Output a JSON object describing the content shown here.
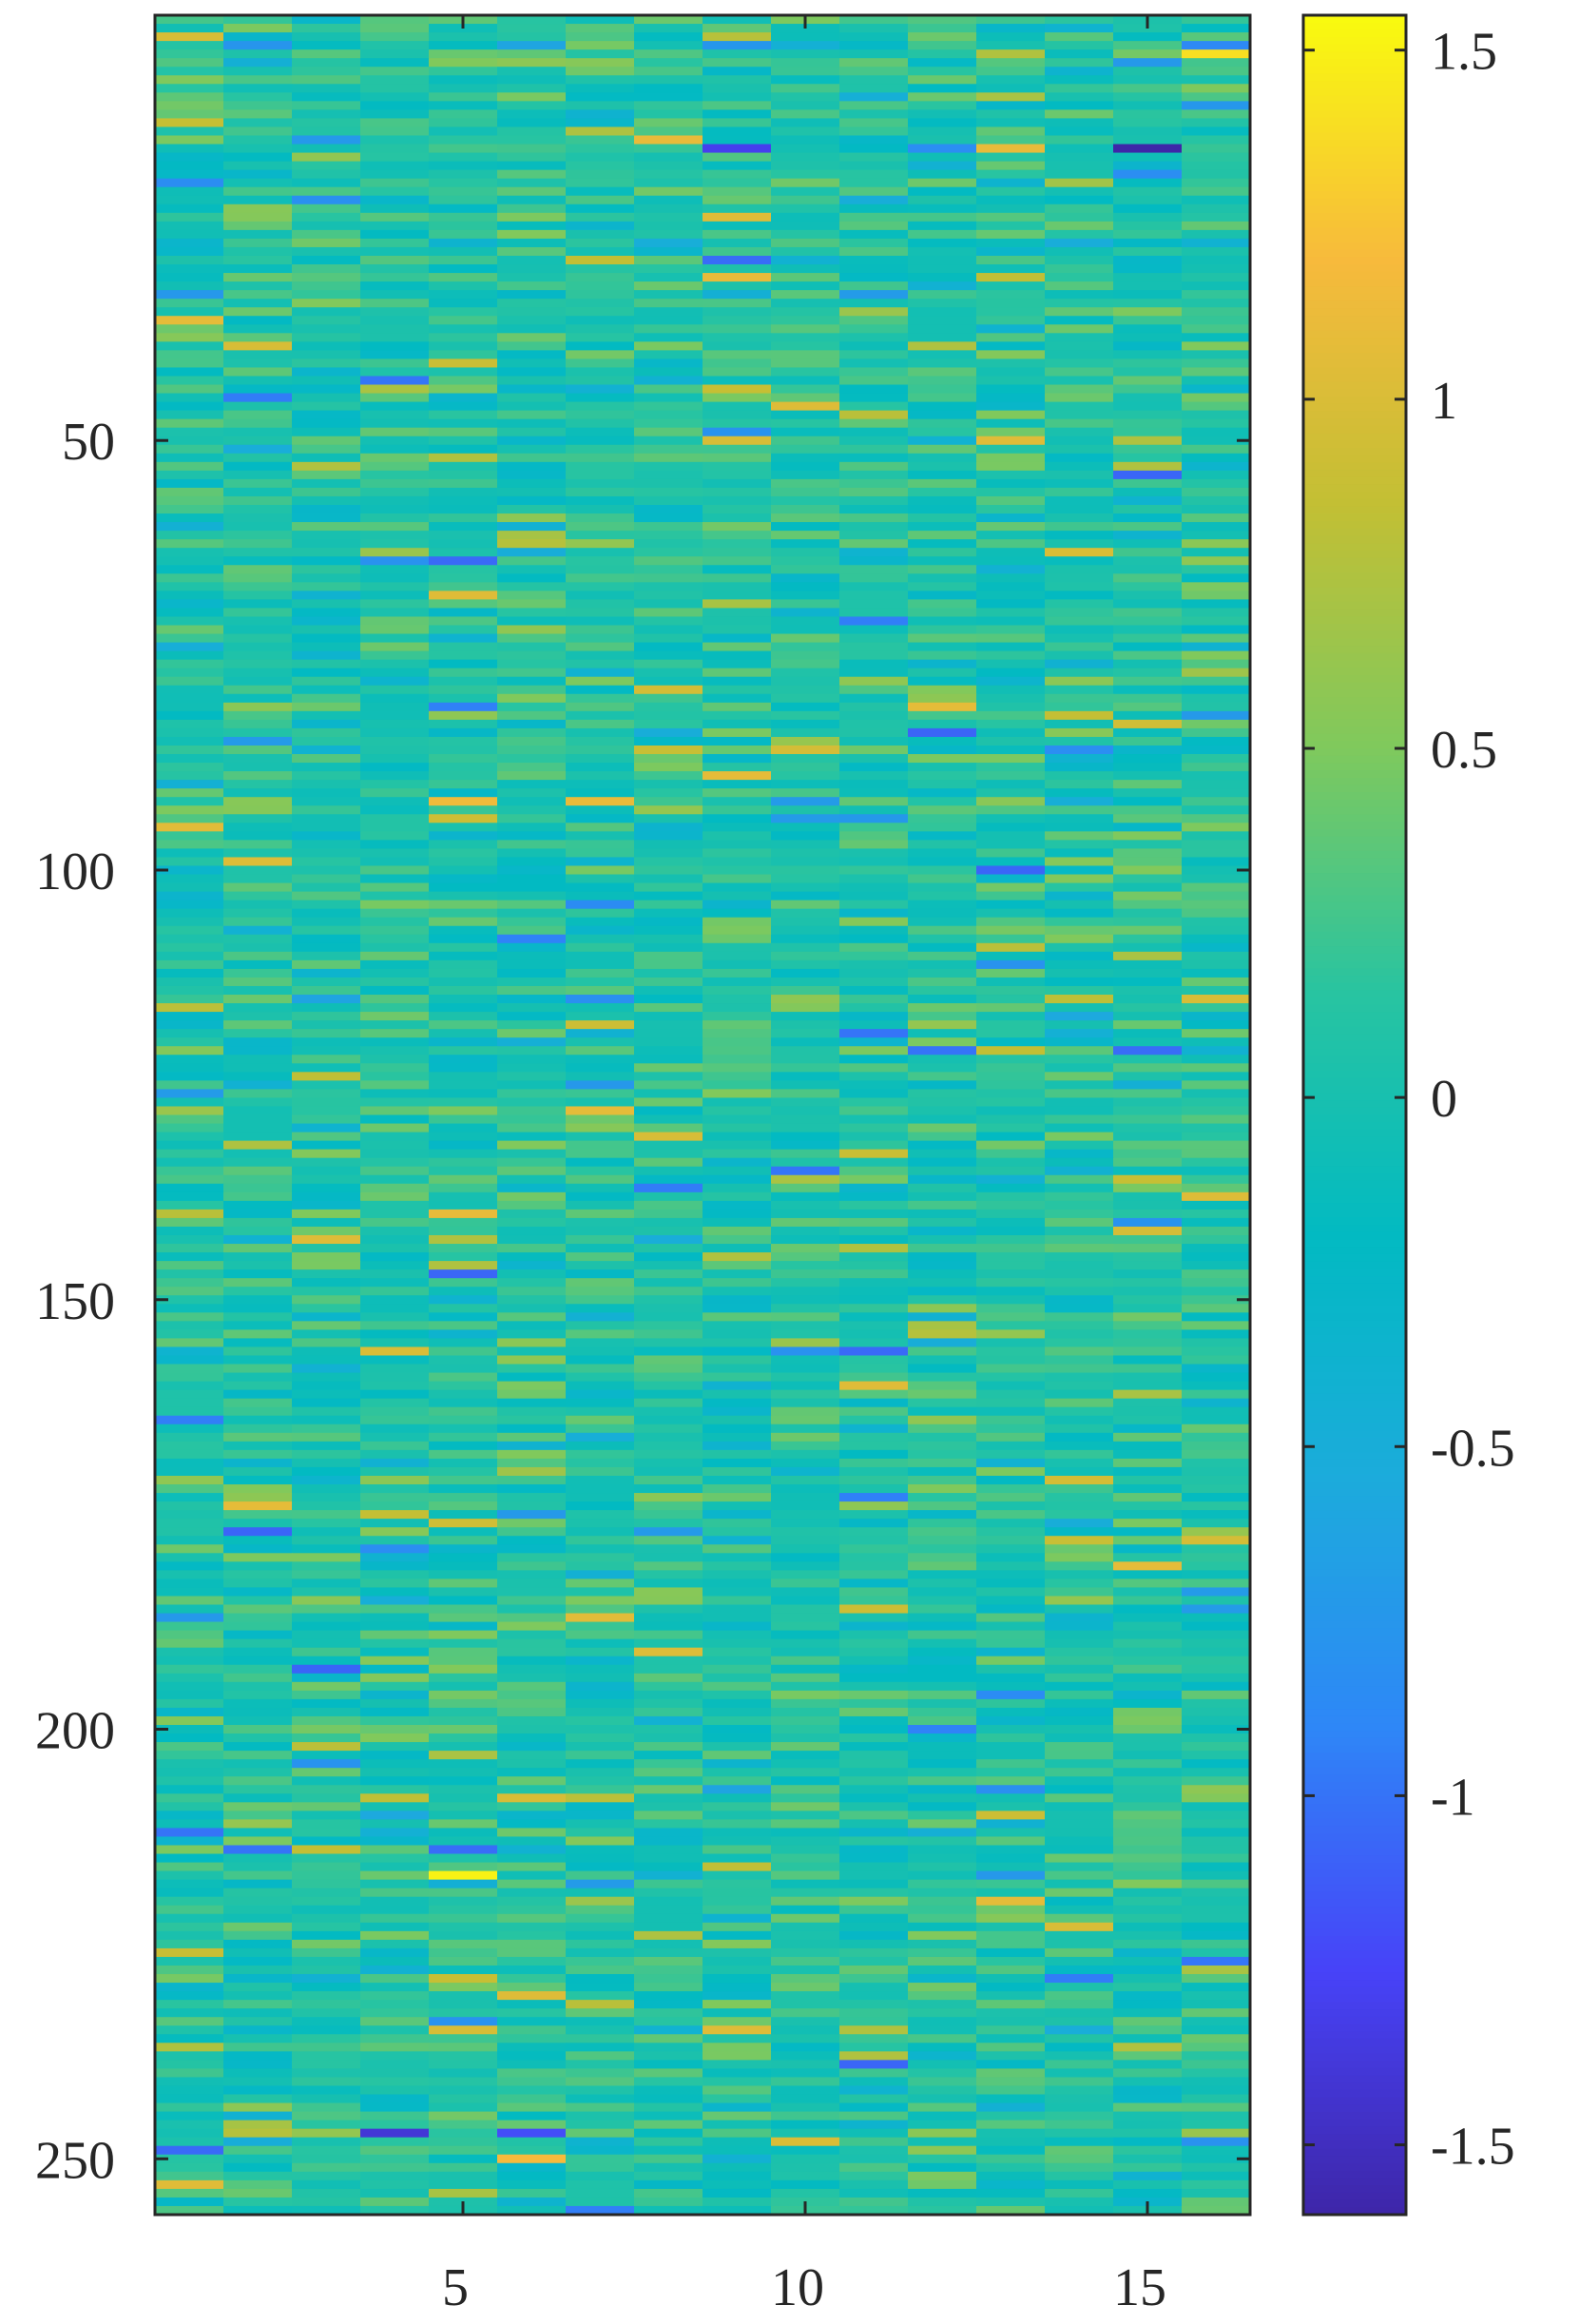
{
  "chart_data": {
    "type": "heatmap",
    "x_ticks": [
      5,
      10,
      15
    ],
    "y_ticks": [
      50,
      100,
      150,
      200,
      250
    ],
    "colorbar_ticks": [
      1.5,
      1,
      0.5,
      0,
      -0.5,
      -1,
      -1.5
    ],
    "colormap": "parula",
    "colors": [
      "#3e26a8",
      "#4743f8",
      "#2e87f7",
      "#1cabdc",
      "#02bac2",
      "#28c4a1",
      "#7fc95d",
      "#c3bf34",
      "#f7ba3c",
      "#f9fb0e"
    ],
    "color_range": [
      -1.6,
      1.55
    ],
    "grid": false,
    "notable_cells": [
      {
        "row": 5,
        "col": 16,
        "value": 1.4
      },
      {
        "row": 15,
        "col": 8,
        "value": 1.1
      },
      {
        "row": 16,
        "col": 9,
        "value": -1.3
      },
      {
        "row": 16,
        "col": 13,
        "value": 1.1
      },
      {
        "row": 16,
        "col": 15,
        "value": -1.6
      },
      {
        "row": 31,
        "col": 9,
        "value": 1.1
      },
      {
        "row": 92,
        "col": 5,
        "value": 1.15
      },
      {
        "row": 92,
        "col": 7,
        "value": 1.1
      },
      {
        "row": 140,
        "col": 5,
        "value": 1.1
      },
      {
        "row": 217,
        "col": 5,
        "value": 1.5
      },
      {
        "row": 247,
        "col": 4,
        "value": -1.4
      },
      {
        "row": 247,
        "col": 6,
        "value": -1.2
      },
      {
        "row": 250,
        "col": 6,
        "value": 1.2
      }
    ]
  }
}
